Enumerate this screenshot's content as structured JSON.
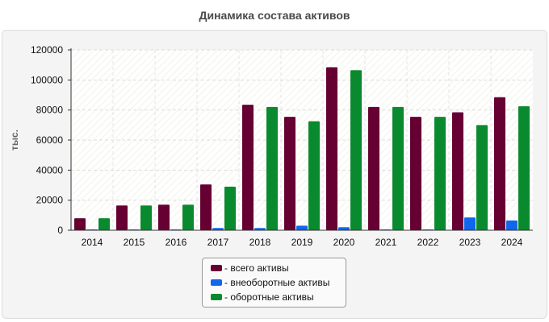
{
  "colors": {
    "total": "#660033",
    "noncurrent": "#1166ee",
    "current": "#0a8a2e"
  },
  "chart_data": {
    "type": "bar",
    "title": "Динамика состава активов",
    "ylabel": "тыс.",
    "xlabel": "",
    "ylim": [
      0,
      120000
    ],
    "yticks": [
      "0",
      "20000",
      "40000",
      "60000",
      "80000",
      "100000",
      "120000"
    ],
    "grid": true,
    "legend_position": "bottom",
    "categories": [
      "2014",
      "2015",
      "2016",
      "2017",
      "2018",
      "2019",
      "2020",
      "2021",
      "2022",
      "2023",
      "2024"
    ],
    "series": [
      {
        "name": "- всего активы",
        "values": [
          8000,
          16500,
          17000,
          30500,
          83500,
          75500,
          108500,
          82000,
          75500,
          78500,
          88500
        ]
      },
      {
        "name": "- внеоборотные активы",
        "values": [
          300,
          300,
          300,
          1500,
          1500,
          3000,
          2000,
          300,
          300,
          8500,
          6500
        ]
      },
      {
        "name": "- оборотные активы",
        "values": [
          8000,
          16500,
          17000,
          29000,
          82000,
          72500,
          106500,
          82000,
          75500,
          70000,
          82500
        ]
      }
    ]
  }
}
